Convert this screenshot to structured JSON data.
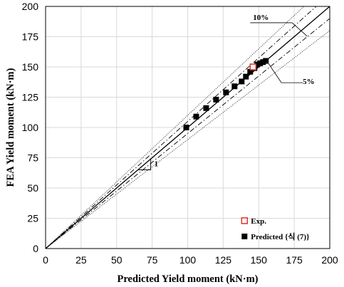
{
  "chart_data": {
    "type": "scatter",
    "xlabel": "Predicted Yield moment (kN·m)",
    "ylabel": "FEA Yield moment (kN·m)",
    "xlim": [
      0,
      200
    ],
    "ylim": [
      0,
      200
    ],
    "x_ticks": [
      "0",
      "25",
      "50",
      "75",
      "100",
      "125",
      "150",
      "175",
      "200"
    ],
    "y_ticks": [
      "0",
      "25",
      "50",
      "75",
      "100",
      "125",
      "150",
      "175",
      "200"
    ],
    "grid": true,
    "legend_position": "bottom-right",
    "series": [
      {
        "name": "Exp.",
        "marker": "open-square",
        "color": "#e0302a",
        "points": [
          [
            146,
            150
          ]
        ]
      },
      {
        "name": "Predicted {식 (7)}",
        "marker": "filled-square",
        "color": "#000000",
        "points": [
          [
            99,
            100
          ],
          [
            106,
            109
          ],
          [
            113,
            116
          ],
          [
            120,
            123
          ],
          [
            127,
            129
          ],
          [
            133,
            134
          ],
          [
            138,
            138
          ],
          [
            141,
            142
          ],
          [
            144,
            146
          ],
          [
            147,
            149
          ],
          [
            149,
            152
          ],
          [
            151,
            153
          ],
          [
            153,
            154
          ],
          [
            155,
            155
          ]
        ]
      }
    ],
    "reference_lines": [
      {
        "type": "solid",
        "slope": 1
      },
      {
        "type": "dashdot",
        "slopes": [
          1.05,
          0.95
        ]
      },
      {
        "type": "dotted",
        "slopes": [
          1.1,
          0.9
        ]
      }
    ],
    "annotations": {
      "ten_percent": "10%",
      "five_percent": "5%",
      "slope_label": "1"
    }
  }
}
